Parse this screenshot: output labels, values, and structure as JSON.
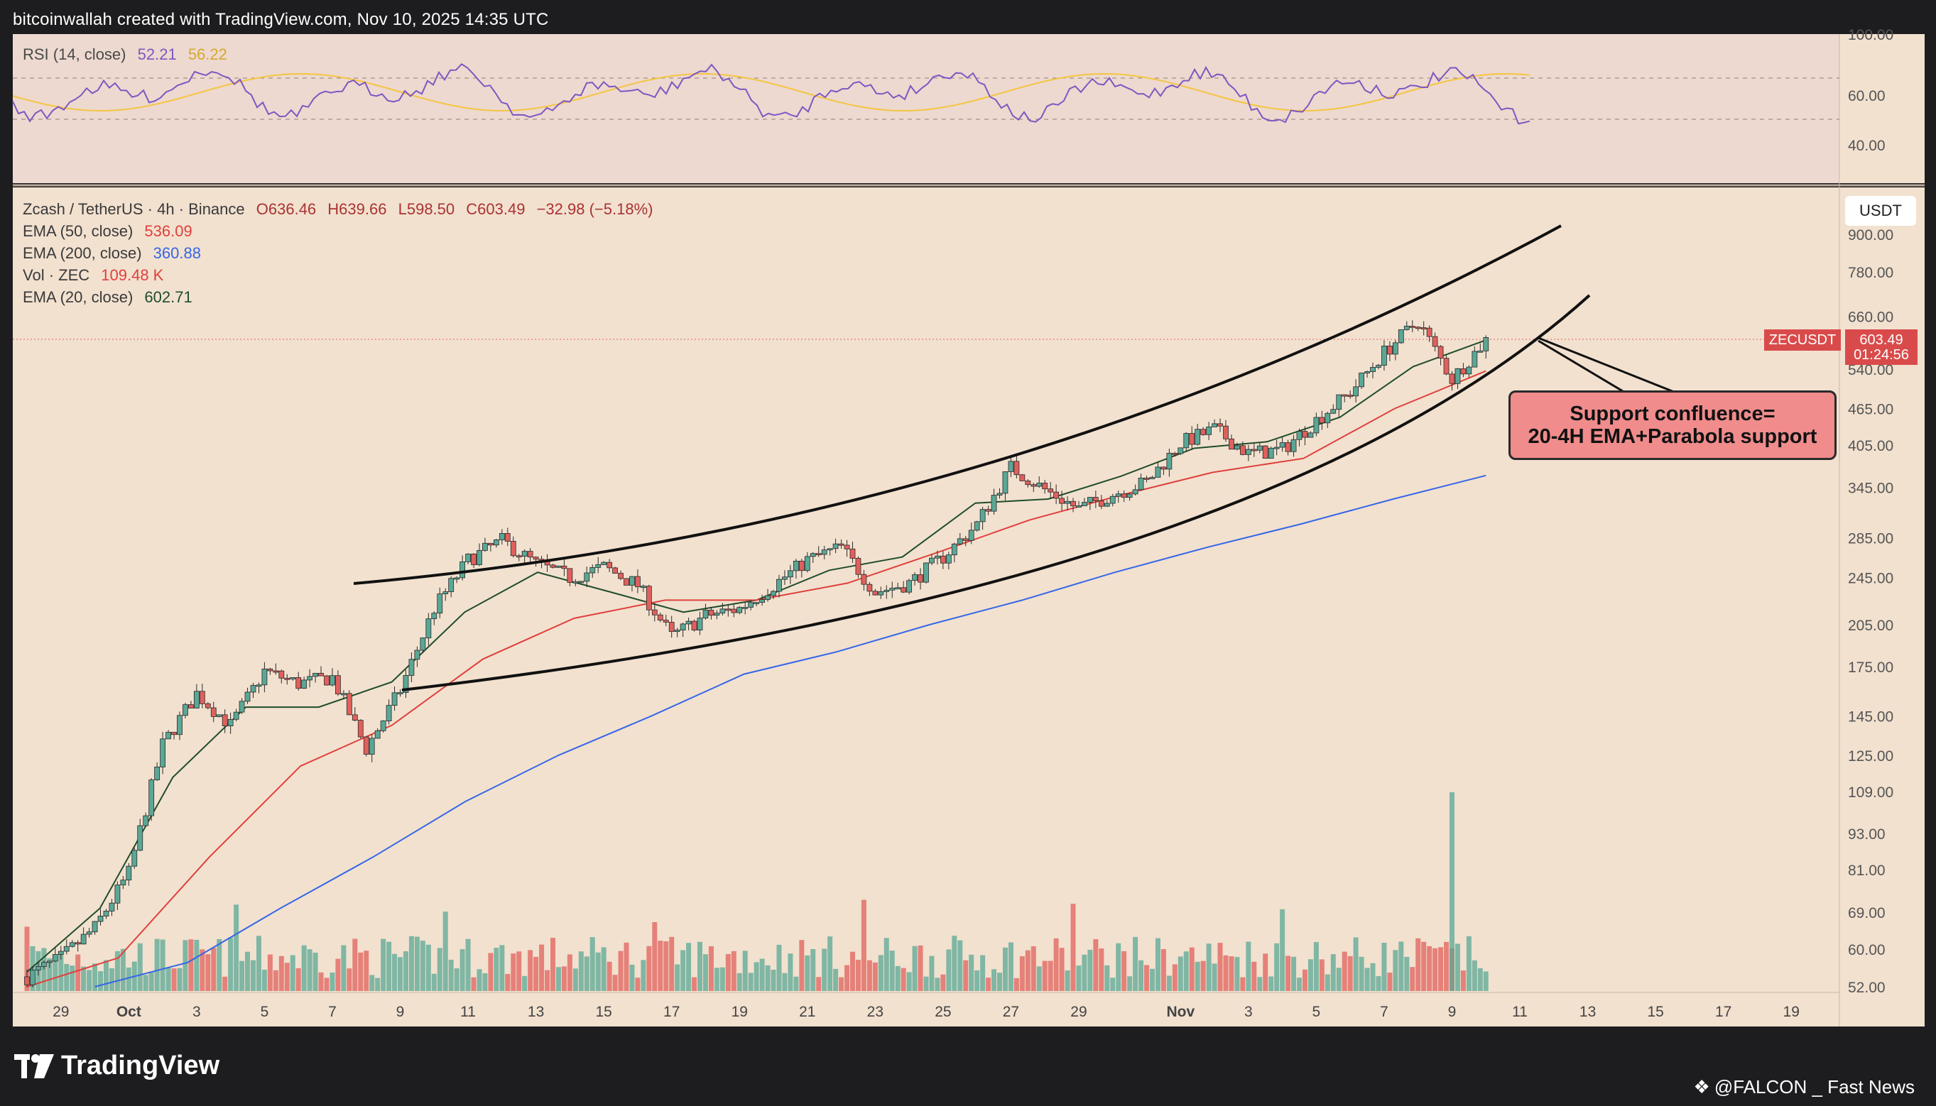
{
  "header": {
    "credit": "bitcoinwallah created with TradingView.com, Nov 10, 2025 14:35 UTC"
  },
  "rsi_panel": {
    "legend_name": "RSI (14, close)",
    "value1": "52.21",
    "value2": "56.22",
    "axis_labels": [
      "100.00",
      "60.00",
      "40.00"
    ]
  },
  "main_panel": {
    "legend": {
      "symbol": "Zcash / TetherUS · 4h · Binance",
      "open": "O636.46",
      "high": "H639.66",
      "low": "L598.50",
      "close": "C603.49",
      "change": "−32.98 (−5.18%)",
      "ema50_label": "EMA (50, close)",
      "ema50_value": "536.09",
      "ema200_label": "EMA (200, close)",
      "ema200_value": "360.88",
      "vol_label": "Vol · ZEC",
      "vol_value": "109.48 K",
      "ema20_label": "EMA (20, close)",
      "ema20_value": "602.71"
    },
    "unit": "USDT",
    "symbol_tag": "ZECUSDT",
    "price_tag": "603.49",
    "countdown": "01:24:56",
    "annotation": {
      "line1": "Support confluence=",
      "line2": "20-4H EMA+Parabola support"
    }
  },
  "footer": {
    "logo_text": "TradingView",
    "source": "@FALCON _ Fast News"
  },
  "colors": {
    "background": "#f2e1cf",
    "up": "#5aa796",
    "down": "#e0605c",
    "ema50": "#e0403c",
    "ema200": "#3566e8",
    "ema20": "#1f4d2a",
    "rsi": "#7e57c2",
    "rsi_ma": "#f4c542",
    "annotation_fill": "#f08c8c"
  },
  "chart_data": {
    "type": "candlestick",
    "title": "Zcash / TetherUS · 4h · Binance",
    "y_scale": "log",
    "y_ticks": [
      900,
      780,
      660,
      540,
      465,
      405,
      345,
      285,
      245,
      205,
      175,
      145,
      125,
      109,
      93,
      81,
      69,
      60,
      52
    ],
    "y_tick_labels": [
      "900.00",
      "780.00",
      "660.00",
      "540.00",
      "465.00",
      "405.00",
      "345.00",
      "285.00",
      "245.00",
      "205.00",
      "175.00",
      "145.00",
      "125.00",
      "109.00",
      "93.00",
      "81.00",
      "69.00",
      "60.00",
      "52.00"
    ],
    "x_tick_labels": [
      "29",
      "Oct",
      "3",
      "5",
      "7",
      "9",
      "11",
      "13",
      "15",
      "17",
      "19",
      "21",
      "23",
      "25",
      "27",
      "29",
      "Nov",
      "3",
      "5",
      "7",
      "9",
      "11",
      "13",
      "15",
      "17",
      "19"
    ],
    "x_range": [
      "2025-09-28",
      "2025-11-20"
    ],
    "price_path": [
      {
        "date": "2025-09-28",
        "close": 54
      },
      {
        "date": "2025-09-29",
        "close": 58
      },
      {
        "date": "2025-09-30",
        "close": 65
      },
      {
        "date": "2025-10-01",
        "close": 80
      },
      {
        "date": "2025-10-02",
        "close": 130
      },
      {
        "date": "2025-10-03",
        "close": 158
      },
      {
        "date": "2025-10-04",
        "close": 140
      },
      {
        "date": "2025-10-05",
        "close": 172
      },
      {
        "date": "2025-10-06",
        "close": 164
      },
      {
        "date": "2025-10-07",
        "close": 168
      },
      {
        "date": "2025-10-08",
        "close": 128
      },
      {
        "date": "2025-10-09",
        "close": 160
      },
      {
        "date": "2025-10-10",
        "close": 218
      },
      {
        "date": "2025-10-11",
        "close": 262
      },
      {
        "date": "2025-10-12",
        "close": 282
      },
      {
        "date": "2025-10-13",
        "close": 258
      },
      {
        "date": "2025-10-14",
        "close": 245
      },
      {
        "date": "2025-10-15",
        "close": 255
      },
      {
        "date": "2025-10-16",
        "close": 238
      },
      {
        "date": "2025-10-17",
        "close": 196
      },
      {
        "date": "2025-10-18",
        "close": 212
      },
      {
        "date": "2025-10-19",
        "close": 218
      },
      {
        "date": "2025-10-20",
        "close": 238
      },
      {
        "date": "2025-10-21",
        "close": 262
      },
      {
        "date": "2025-10-22",
        "close": 275
      },
      {
        "date": "2025-10-23",
        "close": 232
      },
      {
        "date": "2025-10-24",
        "close": 240
      },
      {
        "date": "2025-10-25",
        "close": 265
      },
      {
        "date": "2025-10-26",
        "close": 300
      },
      {
        "date": "2025-10-27",
        "close": 372
      },
      {
        "date": "2025-10-28",
        "close": 342
      },
      {
        "date": "2025-10-29",
        "close": 318
      },
      {
        "date": "2025-10-30",
        "close": 336
      },
      {
        "date": "2025-10-31",
        "close": 352
      },
      {
        "date": "2025-11-01",
        "close": 408
      },
      {
        "date": "2025-11-02",
        "close": 430
      },
      {
        "date": "2025-11-03",
        "close": 392
      },
      {
        "date": "2025-11-04",
        "close": 398
      },
      {
        "date": "2025-11-05",
        "close": 445
      },
      {
        "date": "2025-11-06",
        "close": 495
      },
      {
        "date": "2025-11-07",
        "close": 575
      },
      {
        "date": "2025-11-08",
        "close": 648
      },
      {
        "date": "2025-11-09",
        "close": 520
      },
      {
        "date": "2025-11-10",
        "close": 603.49
      }
    ],
    "series": [
      {
        "name": "EMA (20, close)",
        "last": 602.71,
        "values": [
          55,
          70,
          115,
          150,
          150,
          165,
          215,
          250,
          232,
          215,
          225,
          252,
          265,
          325,
          330,
          360,
          400,
          410,
          450,
          545,
          602.71
        ]
      },
      {
        "name": "EMA (50, close)",
        "last": 536.09,
        "values": [
          52,
          58,
          85,
          120,
          140,
          180,
          210,
          225,
          225,
          240,
          270,
          305,
          335,
          365,
          385,
          465,
          536.09
        ]
      },
      {
        "name": "EMA (200, close)",
        "last": 360.88,
        "values": [
          52,
          57,
          70,
          85,
          105,
          125,
          145,
          170,
          185,
          205,
          225,
          250,
          275,
          300,
          330,
          360.88
        ]
      }
    ],
    "volume_last": "109.48 K"
  }
}
